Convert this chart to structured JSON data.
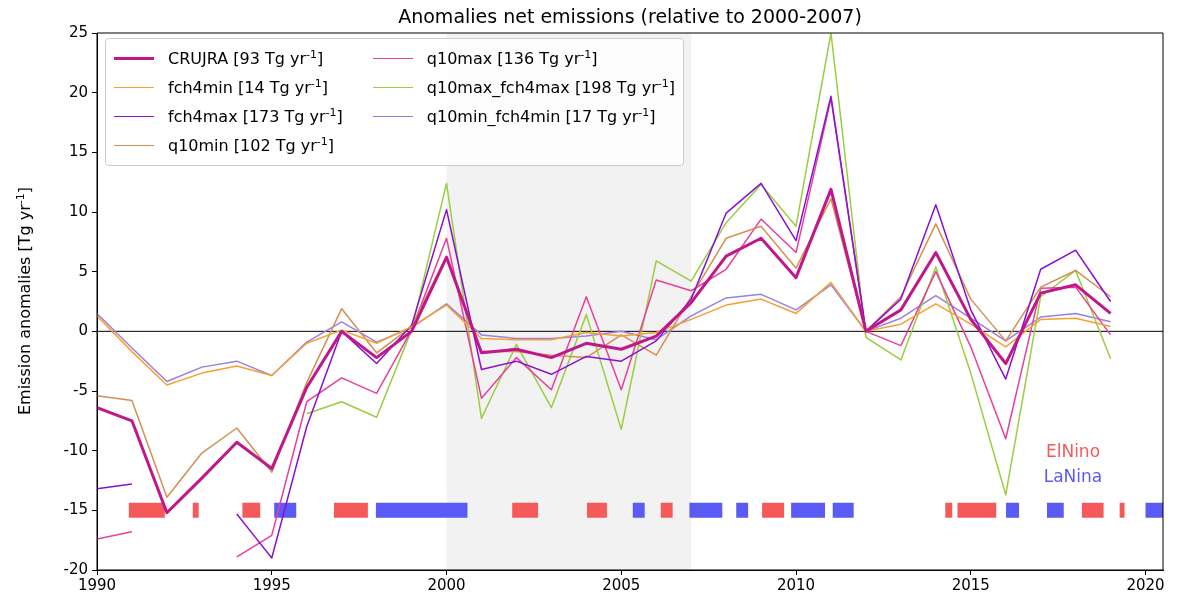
{
  "chart_data": {
    "type": "line",
    "title": "Anomalies net emissions (relative to 2000-2007)",
    "ylabel": "Emission anomalies [Tg yr$^{-1}$]",
    "x": [
      1990,
      1991,
      1992,
      1993,
      1994,
      1995,
      1996,
      1997,
      1998,
      1999,
      2000,
      2001,
      2002,
      2003,
      2004,
      2005,
      2006,
      2007,
      2008,
      2009,
      2010,
      2011,
      2012,
      2013,
      2014,
      2015,
      2016,
      2017,
      2018,
      2019
    ],
    "xlim": [
      1990,
      2020.5
    ],
    "xticks": [
      1990,
      1995,
      2000,
      2005,
      2010,
      2015,
      2020
    ],
    "ylim": [
      -20,
      25
    ],
    "yticks": [
      -20,
      -15,
      -10,
      -5,
      0,
      5,
      10,
      15,
      20,
      25
    ],
    "grid": false,
    "legend": "top left",
    "marker": "none",
    "line_style": "solid",
    "bands": [
      {
        "axis": "x",
        "from": 2000,
        "to": 2007,
        "color": "#f2f2f2"
      }
    ],
    "ref_lines": [
      {
        "axis": "y",
        "value": 0,
        "color": "#000000"
      }
    ],
    "series": [
      {
        "name": "CRUJRA [93 Tg yr$^{-1}$]",
        "color": "#c0178a",
        "values": [
          -6.4,
          -7.5,
          -15.2,
          -12.3,
          -9.3,
          -11.5,
          -4.7,
          0,
          -2.2,
          0,
          6.2,
          -1.8,
          -1.5,
          -2.2,
          -1.0,
          -1.5,
          -0.4,
          2.4,
          6.3,
          7.8,
          4.5,
          11.9,
          0,
          1.8,
          6.6,
          1.0,
          -2.7,
          3.2,
          3.9,
          1.5
        ]
      },
      {
        "name": "fch4min [14 Tg yr$^{-1}$]",
        "color": "#f5a030",
        "values": [
          1.3,
          -1.7,
          -4.5,
          -3.5,
          -2.9,
          -3.7,
          -1.0,
          0.1,
          -1.0,
          0.4,
          2.2,
          -0.6,
          -0.7,
          -0.7,
          -0.1,
          -0.4,
          -0.1,
          1.0,
          2.2,
          2.7,
          1.5,
          4.1,
          0,
          0.6,
          2.3,
          0.6,
          -1.3,
          1.0,
          1.1,
          0.4
        ]
      },
      {
        "name": "fch4max [173 Tg yr$^{-1}$]",
        "color": "#8a10d0",
        "values": [
          -13.2,
          -12.8,
          null,
          null,
          -15.3,
          -19.0,
          -8.0,
          0,
          -2.7,
          0.5,
          10.2,
          -3.2,
          -2.5,
          -3.6,
          -2.1,
          -2.5,
          -0.8,
          2.7,
          9.9,
          12.4,
          7.6,
          19.7,
          0,
          2.7,
          10.6,
          1.8,
          -4.0,
          5.2,
          6.8,
          2.5
        ]
      },
      {
        "name": "q10min [102 Tg yr$^{-1}$]",
        "color": "#d39050",
        "values": [
          -5.4,
          -5.8,
          -13.9,
          -10.2,
          -8.1,
          -11.8,
          -4.3,
          1.9,
          -1.8,
          0.4,
          6.3,
          -1.7,
          -1.7,
          -2.0,
          -2.2,
          -0.3,
          -2.0,
          2.9,
          7.8,
          8.8,
          5.3,
          11.1,
          0,
          2.9,
          9.0,
          2.7,
          -0.8,
          3.7,
          5.1,
          2.9
        ]
      },
      {
        "name": "q10max [136 Tg yr$^{-1}$]",
        "color": "#e8409a",
        "values": [
          -17.4,
          -16.8,
          null,
          null,
          -18.9,
          -17.1,
          -5.9,
          -3.9,
          -5.2,
          0.1,
          7.8,
          -5.6,
          -2.2,
          -4.9,
          2.9,
          -4.9,
          4.3,
          3.4,
          5.2,
          9.4,
          6.6,
          19.5,
          0,
          -1.2,
          5.0,
          -1.3,
          -9.0,
          3.6,
          3.7,
          -0.3
        ]
      },
      {
        "name": "q10max_fch4max [198 Tg yr$^{-1}$]",
        "color": "#9acd40",
        "values": [
          null,
          null,
          null,
          null,
          null,
          null,
          -6.9,
          -5.9,
          -7.2,
          0.1,
          12.4,
          -7.3,
          -1.1,
          -6.4,
          1.4,
          -8.2,
          5.9,
          4.2,
          9.1,
          12.3,
          8.8,
          25,
          -0.5,
          -2.4,
          5.4,
          -3.5,
          -13.7,
          2.9,
          5.1,
          -2.3
        ]
      },
      {
        "name": "q10min_fch4min [17 Tg yr$^{-1}$]",
        "color": "#9a80e0",
        "values": [
          1.5,
          -1.4,
          -4.2,
          -3.0,
          -2.5,
          -3.7,
          -0.9,
          0.8,
          -0.9,
          0.3,
          2.3,
          -0.3,
          -0.6,
          -0.6,
          -0.4,
          0,
          -0.7,
          1.3,
          2.8,
          3.1,
          1.8,
          3.9,
          0,
          1.1,
          3.0,
          1.1,
          -0.8,
          1.2,
          1.5,
          0.8
        ]
      },
      {
        "name": "ElNino",
        "color": "#f55a5a",
        "x": [
          1990.91,
          1991.94,
          null,
          1992.74,
          1992.91,
          null,
          1994.16,
          1994.67,
          null,
          1996.78,
          1997.75,
          null,
          2001.88,
          2002.62,
          null,
          2004.02,
          2004.59,
          null,
          2006.13,
          2006.47,
          null,
          2009.03,
          2009.66,
          null,
          2014.27,
          2014.47,
          null,
          2014.62,
          2015.73,
          null,
          2018.18,
          2018.8,
          null,
          2019.26,
          2019.4
        ],
        "values": [
          -15,
          -15,
          null,
          -15,
          -15,
          null,
          -15,
          -15,
          null,
          -15,
          -15,
          null,
          -15,
          -15,
          null,
          -15,
          -15,
          null,
          -15,
          -15,
          null,
          -15,
          -15,
          null,
          -15,
          -15,
          null,
          -15,
          -15,
          null,
          -15,
          -15,
          null,
          -15,
          -15
        ]
      },
      {
        "name": "LaNina",
        "color": "#5a5af5",
        "x": [
          1995.07,
          1995.7,
          null,
          1997.98,
          2000.6,
          null,
          2005.33,
          2005.67,
          null,
          2006.95,
          2007.89,
          null,
          2008.29,
          2008.63,
          null,
          2009.86,
          2010.83,
          null,
          2011.05,
          2011.65,
          null,
          2016.01,
          2016.38,
          null,
          2017.18,
          2017.66,
          null,
          2020.0,
          2020.5
        ],
        "values": [
          -15,
          -15,
          null,
          -15,
          -15,
          null,
          -15,
          -15,
          null,
          -15,
          -15,
          null,
          -15,
          -15,
          null,
          -15,
          -15,
          null,
          -15,
          -15,
          null,
          -15,
          -15,
          null,
          -15,
          -15,
          null,
          -15,
          -15
        ]
      }
    ]
  }
}
